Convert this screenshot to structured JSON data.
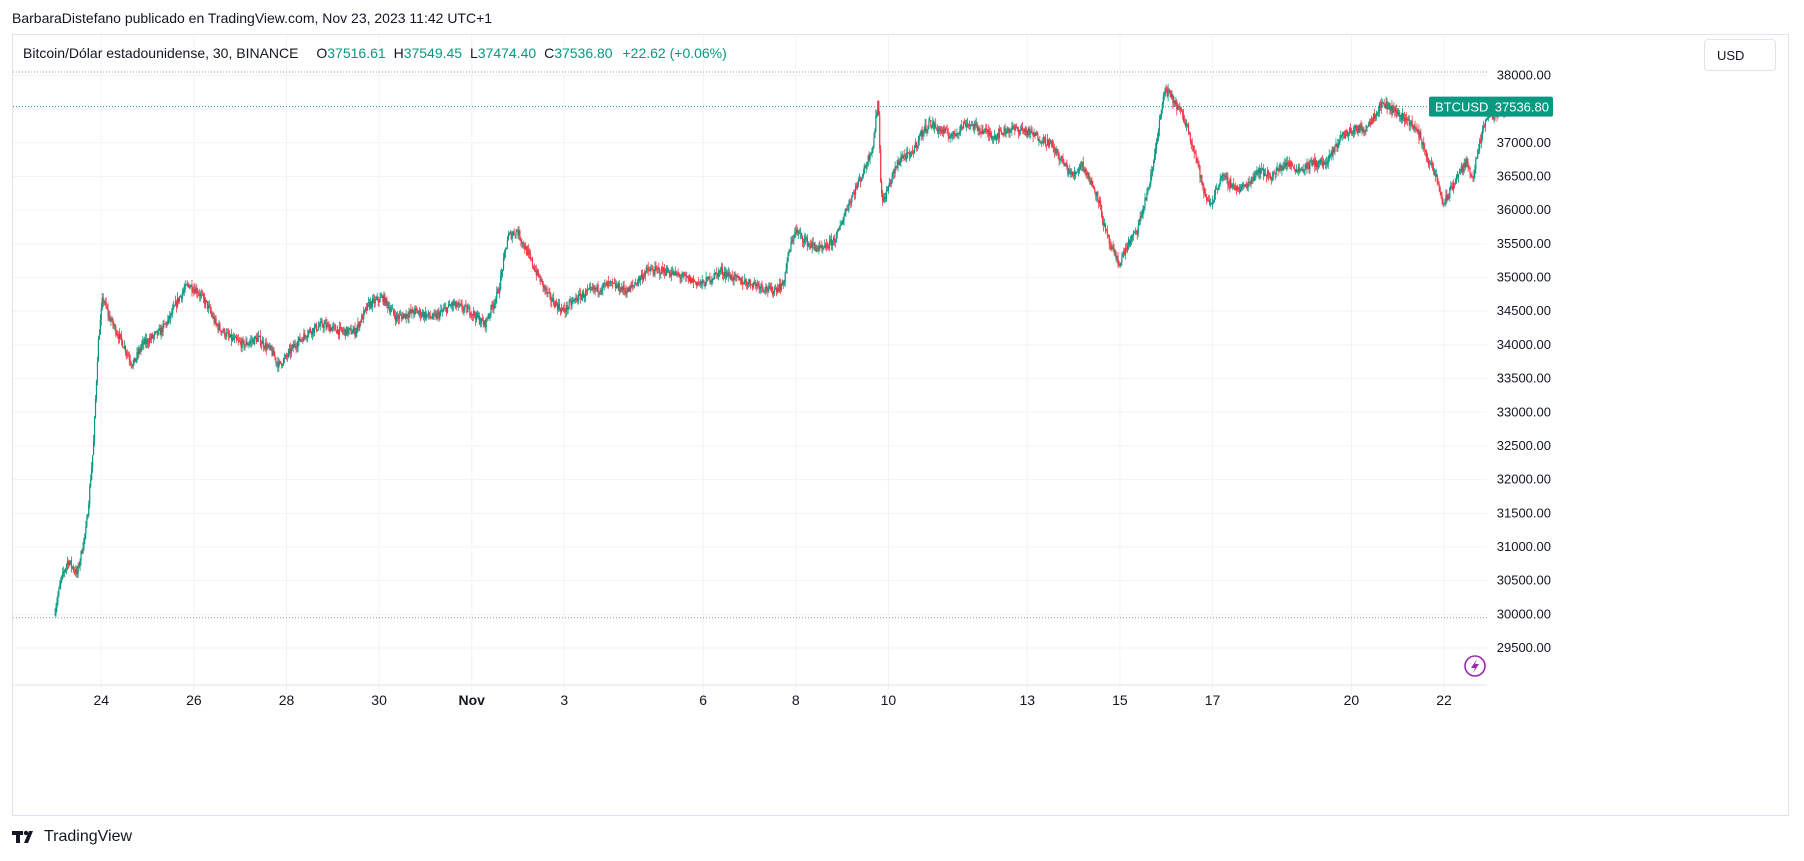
{
  "header": {
    "caption": "BarbaraDistefano publicado en TradingView.com, Nov 23, 2023 11:42 UTC+1"
  },
  "legend": {
    "symbol": "Bitcoin/Dólar estadounidense, 30, BINANCE",
    "o_label": "O",
    "o_value": "37516.61",
    "h_label": "H",
    "h_value": "37549.45",
    "l_label": "L",
    "l_value": "37474.40",
    "c_label": "C",
    "c_value": "37536.80",
    "change": "+22.62 (+0.06%)"
  },
  "currency_button": "USD",
  "price_tag": {
    "symbol": "BTCUSD",
    "value": "37536.80"
  },
  "footer": {
    "brand": "TradingView"
  },
  "colors": {
    "up": "#089981",
    "down": "#f23645",
    "grid": "#f0f3fa",
    "tag": "#089981",
    "axis_text": "#131722"
  },
  "chart_data": {
    "type": "candlestick",
    "title": "Bitcoin/Dólar estadounidense, 30, BINANCE",
    "timeframe": "30",
    "last_price": 37536.8,
    "ylim": [
      29100,
      38600
    ],
    "y_ticks": [
      29500,
      30000,
      30500,
      31000,
      31500,
      32000,
      32500,
      33000,
      33500,
      34000,
      34500,
      35000,
      35500,
      36000,
      36500,
      37000,
      37500,
      38000
    ],
    "y_tick_labels": [
      "29500.00",
      "30000.00",
      "30500.00",
      "31000.00",
      "31500.00",
      "32000.00",
      "32500.00",
      "33000.00",
      "33500.00",
      "34000.00",
      "34500.00",
      "35000.00",
      "35500.00",
      "36000.00",
      "36500.00",
      "37000.00",
      "37500.00",
      "38000.00"
    ],
    "x_ticks": [
      {
        "label": "24",
        "day": 1.0
      },
      {
        "label": "26",
        "day": 3.0
      },
      {
        "label": "28",
        "day": 5.0
      },
      {
        "label": "30",
        "day": 7.0
      },
      {
        "label": "Nov",
        "day": 9.0
      },
      {
        "label": "3",
        "day": 11.0
      },
      {
        "label": "6",
        "day": 14.0
      },
      {
        "label": "8",
        "day": 16.0
      },
      {
        "label": "10",
        "day": 18.0
      },
      {
        "label": "13",
        "day": 21.0
      },
      {
        "label": "15",
        "day": 23.0
      },
      {
        "label": "17",
        "day": 25.0
      },
      {
        "label": "20",
        "day": 28.0
      },
      {
        "label": "22",
        "day": 30.0
      }
    ],
    "dotted_lines": [
      38050,
      29950
    ],
    "price_path": [
      [
        0.0,
        30000
      ],
      [
        0.15,
        30500
      ],
      [
        0.3,
        30800
      ],
      [
        0.5,
        30600
      ],
      [
        0.7,
        31300
      ],
      [
        0.85,
        32500
      ],
      [
        0.95,
        34000
      ],
      [
        1.05,
        34700
      ],
      [
        1.2,
        34400
      ],
      [
        1.35,
        34200
      ],
      [
        1.5,
        34000
      ],
      [
        1.7,
        33700
      ],
      [
        1.9,
        34000
      ],
      [
        2.1,
        34100
      ],
      [
        2.3,
        34200
      ],
      [
        2.5,
        34400
      ],
      [
        2.7,
        34700
      ],
      [
        2.9,
        34900
      ],
      [
        3.1,
        34800
      ],
      [
        3.3,
        34600
      ],
      [
        3.5,
        34300
      ],
      [
        3.8,
        34100
      ],
      [
        4.1,
        34000
      ],
      [
        4.4,
        34100
      ],
      [
        4.7,
        33900
      ],
      [
        4.85,
        33700
      ],
      [
        5.0,
        33800
      ],
      [
        5.2,
        34000
      ],
      [
        5.5,
        34200
      ],
      [
        5.8,
        34300
      ],
      [
        6.2,
        34200
      ],
      [
        6.5,
        34200
      ],
      [
        6.8,
        34600
      ],
      [
        7.1,
        34700
      ],
      [
        7.4,
        34400
      ],
      [
        7.8,
        34500
      ],
      [
        8.2,
        34400
      ],
      [
        8.6,
        34600
      ],
      [
        9.0,
        34500
      ],
      [
        9.3,
        34300
      ],
      [
        9.6,
        34800
      ],
      [
        9.8,
        35600
      ],
      [
        10.0,
        35700
      ],
      [
        10.2,
        35400
      ],
      [
        10.4,
        35100
      ],
      [
        10.7,
        34700
      ],
      [
        11.0,
        34500
      ],
      [
        11.3,
        34700
      ],
      [
        11.6,
        34800
      ],
      [
        12.0,
        34900
      ],
      [
        12.4,
        34800
      ],
      [
        12.8,
        35100
      ],
      [
        13.2,
        35100
      ],
      [
        13.6,
        35000
      ],
      [
        14.0,
        34900
      ],
      [
        14.4,
        35100
      ],
      [
        14.8,
        34950
      ],
      [
        15.2,
        34900
      ],
      [
        15.5,
        34800
      ],
      [
        15.75,
        34900
      ],
      [
        15.85,
        35300
      ],
      [
        16.0,
        35700
      ],
      [
        16.3,
        35500
      ],
      [
        16.6,
        35400
      ],
      [
        16.9,
        35600
      ],
      [
        17.1,
        36000
      ],
      [
        17.3,
        36300
      ],
      [
        17.5,
        36600
      ],
      [
        17.7,
        37000
      ],
      [
        17.8,
        37700
      ],
      [
        17.85,
        36500
      ],
      [
        17.9,
        36100
      ],
      [
        18.1,
        36500
      ],
      [
        18.3,
        36800
      ],
      [
        18.5,
        36800
      ],
      [
        18.7,
        37100
      ],
      [
        18.9,
        37300
      ],
      [
        19.1,
        37200
      ],
      [
        19.4,
        37100
      ],
      [
        19.7,
        37300
      ],
      [
        20.0,
        37200
      ],
      [
        20.3,
        37100
      ],
      [
        20.6,
        37200
      ],
      [
        20.9,
        37200
      ],
      [
        21.2,
        37100
      ],
      [
        21.5,
        37000
      ],
      [
        21.8,
        36700
      ],
      [
        22.0,
        36500
      ],
      [
        22.2,
        36700
      ],
      [
        22.4,
        36400
      ],
      [
        22.55,
        36200
      ],
      [
        22.7,
        35700
      ],
      [
        22.85,
        35400
      ],
      [
        23.0,
        35200
      ],
      [
        23.2,
        35500
      ],
      [
        23.4,
        35700
      ],
      [
        23.55,
        36100
      ],
      [
        23.7,
        36500
      ],
      [
        23.85,
        37200
      ],
      [
        24.0,
        37800
      ],
      [
        24.1,
        37700
      ],
      [
        24.3,
        37500
      ],
      [
        24.5,
        37200
      ],
      [
        24.7,
        36700
      ],
      [
        24.85,
        36200
      ],
      [
        25.0,
        36100
      ],
      [
        25.2,
        36500
      ],
      [
        25.4,
        36400
      ],
      [
        25.6,
        36300
      ],
      [
        25.8,
        36400
      ],
      [
        26.0,
        36600
      ],
      [
        26.3,
        36500
      ],
      [
        26.6,
        36700
      ],
      [
        26.9,
        36600
      ],
      [
        27.2,
        36700
      ],
      [
        27.5,
        36700
      ],
      [
        27.8,
        37100
      ],
      [
        28.1,
        37200
      ],
      [
        28.3,
        37200
      ],
      [
        28.5,
        37400
      ],
      [
        28.7,
        37600
      ],
      [
        28.9,
        37500
      ],
      [
        29.1,
        37400
      ],
      [
        29.3,
        37300
      ],
      [
        29.5,
        37100
      ],
      [
        29.7,
        36700
      ],
      [
        29.85,
        36500
      ],
      [
        30.0,
        36100
      ],
      [
        30.1,
        36200
      ],
      [
        30.3,
        36500
      ],
      [
        30.5,
        36700
      ],
      [
        30.65,
        36500
      ],
      [
        30.8,
        37000
      ],
      [
        30.95,
        37400
      ],
      [
        31.1,
        37400
      ],
      [
        31.3,
        37500
      ],
      [
        31.45,
        37536
      ]
    ]
  }
}
